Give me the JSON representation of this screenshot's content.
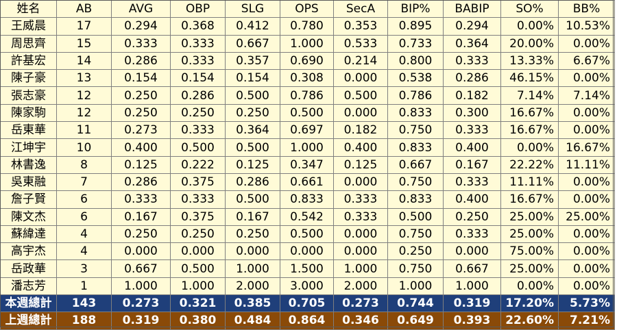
{
  "headers": [
    "姓名",
    "AB",
    "AVG",
    "OBP",
    "SLG",
    "OPS",
    "SecA",
    "BIP%",
    "BABIP",
    "SO%",
    "BB%"
  ],
  "rows": [
    [
      "王威晨",
      "17",
      "0.294",
      "0.368",
      "0.412",
      "0.780",
      "0.353",
      "0.895",
      "0.294",
      "0.00%",
      "10.53%"
    ],
    [
      "周思齊",
      "15",
      "0.333",
      "0.333",
      "0.667",
      "1.000",
      "0.533",
      "0.733",
      "0.364",
      "20.00%",
      "0.00%"
    ],
    [
      "許基宏",
      "14",
      "0.286",
      "0.333",
      "0.357",
      "0.690",
      "0.214",
      "0.800",
      "0.333",
      "13.33%",
      "6.67%"
    ],
    [
      "陳子豪",
      "13",
      "0.154",
      "0.154",
      "0.154",
      "0.308",
      "0.000",
      "0.538",
      "0.286",
      "46.15%",
      "0.00%"
    ],
    [
      "張志豪",
      "12",
      "0.250",
      "0.286",
      "0.500",
      "0.786",
      "0.500",
      "0.786",
      "0.182",
      "7.14%",
      "7.14%"
    ],
    [
      "陳家駒",
      "12",
      "0.250",
      "0.250",
      "0.250",
      "0.500",
      "0.000",
      "0.833",
      "0.300",
      "16.67%",
      "0.00%"
    ],
    [
      "岳東華",
      "11",
      "0.273",
      "0.333",
      "0.364",
      "0.697",
      "0.182",
      "0.750",
      "0.333",
      "16.67%",
      "0.00%"
    ],
    [
      "江坤宇",
      "10",
      "0.400",
      "0.500",
      "0.500",
      "1.000",
      "0.400",
      "0.833",
      "0.400",
      "0.00%",
      "16.67%"
    ],
    [
      "林書逸",
      "8",
      "0.125",
      "0.222",
      "0.125",
      "0.347",
      "0.125",
      "0.667",
      "0.167",
      "22.22%",
      "11.11%"
    ],
    [
      "吳東融",
      "7",
      "0.286",
      "0.375",
      "0.286",
      "0.661",
      "0.000",
      "0.750",
      "0.333",
      "11.11%",
      "0.00%"
    ],
    [
      "詹子賢",
      "6",
      "0.333",
      "0.333",
      "0.500",
      "0.833",
      "0.333",
      "0.833",
      "0.400",
      "16.67%",
      "0.00%"
    ],
    [
      "陳文杰",
      "6",
      "0.167",
      "0.375",
      "0.167",
      "0.542",
      "0.333",
      "0.500",
      "0.250",
      "25.00%",
      "25.00%"
    ],
    [
      "蘇緯達",
      "4",
      "0.250",
      "0.250",
      "0.250",
      "0.500",
      "0.000",
      "0.750",
      "0.333",
      "25.00%",
      "0.00%"
    ],
    [
      "高宇杰",
      "4",
      "0.000",
      "0.000",
      "0.000",
      "0.000",
      "0.000",
      "0.250",
      "0.000",
      "75.00%",
      "0.00%"
    ],
    [
      "岳政華",
      "3",
      "0.667",
      "0.500",
      "1.000",
      "1.500",
      "1.000",
      "0.750",
      "0.667",
      "25.00%",
      "0.00%"
    ],
    [
      "潘志芳",
      "1",
      "1.000",
      "1.000",
      "2.000",
      "3.000",
      "2.000",
      "1.000",
      "1.000",
      "0.00%",
      "0.00%"
    ]
  ],
  "totals": [
    {
      "key": "this",
      "cells": [
        "本週總計",
        "143",
        "0.273",
        "0.321",
        "0.385",
        "0.705",
        "0.273",
        "0.744",
        "0.319",
        "17.20%",
        "5.73%"
      ]
    },
    {
      "key": "last",
      "cells": [
        "上週總計",
        "188",
        "0.319",
        "0.380",
        "0.484",
        "0.864",
        "0.346",
        "0.649",
        "0.393",
        "22.60%",
        "7.21%"
      ]
    }
  ],
  "colors": {
    "row_background": "#fffbd7",
    "this_week_total": "#1f3f7a",
    "last_week_total": "#8a4a08",
    "grid_line": "#7f7f7f"
  }
}
